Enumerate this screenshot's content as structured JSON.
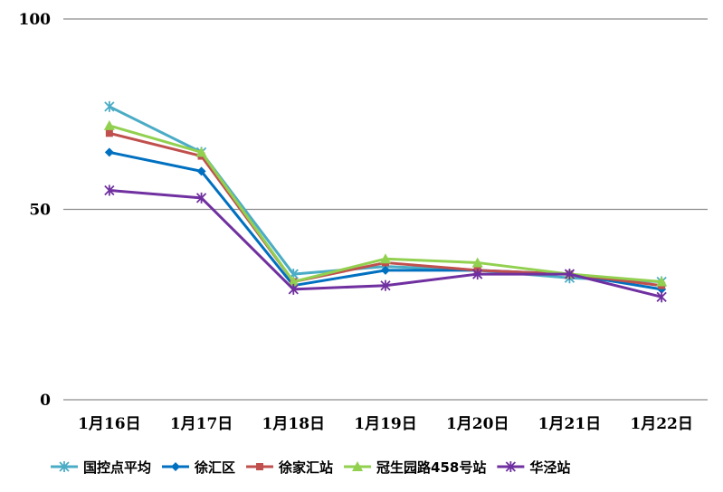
{
  "chart_data": {
    "type": "line",
    "categories": [
      "1月16日",
      "1月17日",
      "1月18日",
      "1月19日",
      "1月20日",
      "1月21日",
      "1月22日"
    ],
    "y_ticks": [
      0,
      50,
      100
    ],
    "ylim": [
      0,
      100
    ],
    "grid": true,
    "legend_position": "bottom",
    "series": [
      {
        "name": "国控点平均",
        "color": "#4BACC6",
        "marker": "star",
        "values": [
          77,
          65,
          33,
          35,
          34,
          32,
          31
        ]
      },
      {
        "name": "徐汇区",
        "color": "#0070C0",
        "marker": "diamond",
        "values": [
          65,
          60,
          30,
          34,
          34,
          33,
          29
        ]
      },
      {
        "name": "徐家汇站",
        "color": "#C0504D",
        "marker": "square",
        "values": [
          70,
          64,
          31,
          36,
          34,
          33,
          30
        ]
      },
      {
        "name": "冠生园路458号站",
        "color": "#92D050",
        "marker": "triangle",
        "values": [
          72,
          65,
          31,
          37,
          36,
          33,
          31
        ]
      },
      {
        "name": "华泾站",
        "color": "#7030A0",
        "marker": "star",
        "values": [
          55,
          53,
          29,
          30,
          33,
          33,
          27
        ]
      }
    ]
  }
}
